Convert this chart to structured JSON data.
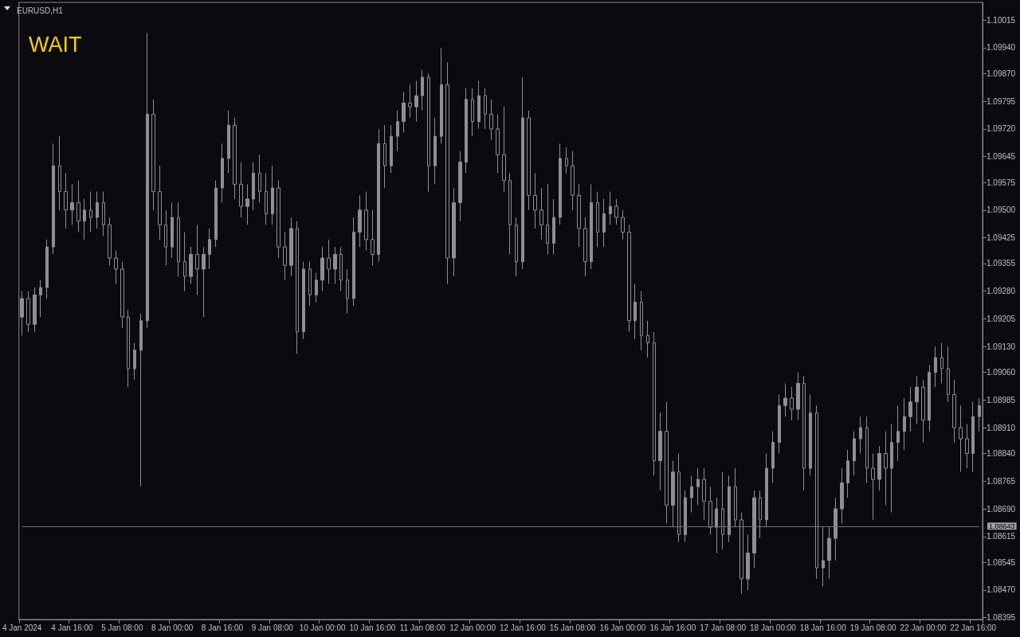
{
  "chart_data": {
    "type": "candlestick",
    "title": "EURUSD,H1",
    "color": "#8e8e96",
    "annotations": [
      "WAIT"
    ],
    "categories": [
      "4 Jan 2024",
      null,
      null,
      null,
      null,
      null,
      null,
      null,
      "4 Jan 16:00",
      null,
      null,
      null,
      null,
      null,
      null,
      null,
      "5 Jan 08:00",
      null,
      null,
      null,
      null,
      null,
      null,
      null,
      "8 Jan 00:00",
      null,
      null,
      null,
      null,
      null,
      null,
      null,
      "8 Jan 16:00",
      null,
      null,
      null,
      null,
      null,
      null,
      null,
      "9 Jan 08:00",
      null,
      null,
      null,
      null,
      null,
      null,
      null,
      "10 Jan 00:00",
      null,
      null,
      null,
      null,
      null,
      null,
      null,
      "10 Jan 16:00",
      null,
      null,
      null,
      null,
      null,
      null,
      null,
      "11 Jan 08:00",
      null,
      null,
      null,
      null,
      null,
      null,
      null,
      "12 Jan 00:00",
      null,
      null,
      null,
      null,
      null,
      null,
      null,
      "12 Jan 16:00",
      null,
      null,
      null,
      null,
      null,
      null,
      null,
      "15 Jan 08:00",
      null,
      null,
      null,
      null,
      null,
      null,
      null,
      "16 Jan 00:00",
      null,
      null,
      null,
      null,
      null,
      null,
      null,
      "16 Jan 16:00",
      null,
      null,
      null,
      null,
      null,
      null,
      null,
      "17 Jan 08:00",
      null,
      null,
      null,
      null,
      null,
      null,
      null,
      "18 Jan 00:00",
      null,
      null,
      null,
      null,
      null,
      null,
      null,
      "18 Jan 16:00",
      null,
      null,
      null,
      null,
      null,
      null,
      null,
      "19 Jan 08:00",
      null,
      null,
      null,
      null,
      null,
      null,
      null,
      "22 Jan 00:00",
      null,
      null,
      null,
      null,
      null,
      null,
      null,
      "22 Jan 16:00",
      null
    ],
    "ohlc": [
      [
        1.0921,
        1.0928,
        1.0916,
        1.0926
      ],
      [
        1.0926,
        1.0928,
        1.0917,
        1.0919
      ],
      [
        1.0919,
        1.0929,
        1.0917,
        1.0927
      ],
      [
        1.0927,
        1.0931,
        1.0921,
        1.0929
      ],
      [
        1.0929,
        1.0942,
        1.0926,
        1.094
      ],
      [
        1.094,
        1.0968,
        1.0938,
        1.0962
      ],
      [
        1.0962,
        1.097,
        1.095,
        1.0955
      ],
      [
        1.0955,
        1.096,
        1.0945,
        1.095
      ],
      [
        1.095,
        1.0957,
        1.0946,
        1.0952
      ],
      [
        1.0952,
        1.0958,
        1.0944,
        1.0947
      ],
      [
        1.0947,
        1.0953,
        1.0942,
        1.095
      ],
      [
        1.095,
        1.0955,
        1.0944,
        1.0948
      ],
      [
        1.0948,
        1.0955,
        1.0945,
        1.0952
      ],
      [
        1.0952,
        1.0955,
        1.0943,
        1.0946
      ],
      [
        1.0946,
        1.0948,
        1.0935,
        1.0937
      ],
      [
        1.0937,
        1.0939,
        1.093,
        1.0934
      ],
      [
        1.0934,
        1.0936,
        1.0918,
        1.0921
      ],
      [
        1.0921,
        1.0923,
        1.0902,
        1.0907
      ],
      [
        1.0907,
        1.0914,
        1.0904,
        1.0912
      ],
      [
        1.0912,
        1.0922,
        1.0875,
        1.092
      ],
      [
        1.092,
        1.0998,
        1.0918,
        1.0976
      ],
      [
        1.0976,
        1.098,
        1.095,
        1.0955
      ],
      [
        1.0955,
        1.0962,
        1.0942,
        1.0946
      ],
      [
        1.0946,
        1.095,
        1.0935,
        1.094
      ],
      [
        1.094,
        1.0952,
        1.0937,
        1.0948
      ],
      [
        1.0948,
        1.0952,
        1.0932,
        1.0936
      ],
      [
        1.0936,
        1.0944,
        1.0928,
        1.0932
      ],
      [
        1.0932,
        1.094,
        1.093,
        1.0938
      ],
      [
        1.0938,
        1.0946,
        1.0927,
        1.0934
      ],
      [
        1.0934,
        1.094,
        1.0921,
        1.0938
      ],
      [
        1.0938,
        1.0945,
        1.0934,
        1.0942
      ],
      [
        1.0942,
        1.0958,
        1.094,
        1.0956
      ],
      [
        1.0956,
        1.0968,
        1.0952,
        1.0964
      ],
      [
        1.0964,
        1.0977,
        1.096,
        1.0973
      ],
      [
        1.0973,
        1.0975,
        1.0953,
        1.0957
      ],
      [
        1.0957,
        1.0963,
        1.0948,
        1.0951
      ],
      [
        1.0951,
        1.0957,
        1.0946,
        1.0953
      ],
      [
        1.0953,
        1.0963,
        1.095,
        1.096
      ],
      [
        1.096,
        1.0965,
        1.0952,
        1.0955
      ],
      [
        1.0955,
        1.096,
        1.0946,
        1.0949
      ],
      [
        1.0949,
        1.0962,
        1.0946,
        1.0956
      ],
      [
        1.0956,
        1.0958,
        1.0937,
        1.094
      ],
      [
        1.094,
        1.0944,
        1.0931,
        1.0935
      ],
      [
        1.0935,
        1.0948,
        1.0932,
        1.0945
      ],
      [
        1.0945,
        1.0947,
        1.0911,
        1.0917
      ],
      [
        1.0917,
        1.0936,
        1.0915,
        1.0934
      ],
      [
        1.0934,
        1.0936,
        1.0924,
        1.0927
      ],
      [
        1.0927,
        1.0933,
        1.0925,
        1.0931
      ],
      [
        1.0931,
        1.094,
        1.0928,
        1.0937
      ],
      [
        1.0937,
        1.0942,
        1.093,
        1.0934
      ],
      [
        1.0934,
        1.094,
        1.093,
        1.0938
      ],
      [
        1.0938,
        1.094,
        1.0928,
        1.0931
      ],
      [
        1.0931,
        1.0934,
        1.0922,
        1.0926
      ],
      [
        1.0926,
        1.0948,
        1.0924,
        1.0944
      ],
      [
        1.0944,
        1.0954,
        1.094,
        1.095
      ],
      [
        1.095,
        1.0955,
        1.0939,
        1.0942
      ],
      [
        1.0942,
        1.095,
        1.0935,
        1.0938
      ],
      [
        1.0938,
        1.0972,
        1.0936,
        1.0968
      ],
      [
        1.0968,
        1.0973,
        1.0956,
        1.0962
      ],
      [
        1.0962,
        1.0973,
        1.096,
        1.097
      ],
      [
        1.097,
        1.0977,
        1.0966,
        1.0974
      ],
      [
        1.0974,
        1.0982,
        1.0971,
        1.0979
      ],
      [
        1.0979,
        1.0984,
        1.0975,
        1.0978
      ],
      [
        1.0978,
        1.0985,
        1.0974,
        1.0981
      ],
      [
        1.0981,
        1.0988,
        1.0977,
        1.0986
      ],
      [
        1.0986,
        1.0987,
        1.0955,
        1.0962
      ],
      [
        1.0962,
        1.0975,
        1.0957,
        1.097
      ],
      [
        1.097,
        1.0994,
        1.0968,
        1.0984
      ],
      [
        1.0984,
        1.099,
        1.093,
        1.0937
      ],
      [
        1.0937,
        1.0956,
        1.0932,
        1.0952
      ],
      [
        1.0952,
        1.0966,
        1.0947,
        1.0963
      ],
      [
        1.0963,
        1.0983,
        1.096,
        1.098
      ],
      [
        1.098,
        1.0983,
        1.097,
        1.0974
      ],
      [
        1.0974,
        1.0985,
        1.0972,
        1.0981
      ],
      [
        1.0981,
        1.0983,
        1.0972,
        1.0976
      ],
      [
        1.0976,
        1.098,
        1.0969,
        1.0972
      ],
      [
        1.0972,
        1.0976,
        1.096,
        1.0965
      ],
      [
        1.0965,
        1.0978,
        1.0955,
        1.0958
      ],
      [
        1.0958,
        1.096,
        1.0938,
        1.0946
      ],
      [
        1.0946,
        1.0948,
        1.0932,
        1.0936
      ],
      [
        1.0936,
        1.0986,
        1.0934,
        1.0975
      ],
      [
        1.0975,
        1.0977,
        1.095,
        1.0954
      ],
      [
        1.0954,
        1.096,
        1.0945,
        1.095
      ],
      [
        1.095,
        1.0956,
        1.0942,
        1.0946
      ],
      [
        1.0946,
        1.0957,
        1.0938,
        1.0941
      ],
      [
        1.0941,
        1.0953,
        1.0938,
        1.0948
      ],
      [
        1.0948,
        1.0968,
        1.0946,
        1.0964
      ],
      [
        1.0964,
        1.0967,
        1.096,
        1.0962
      ],
      [
        1.0962,
        1.0966,
        1.095,
        1.0954
      ],
      [
        1.0954,
        1.0957,
        1.094,
        1.0945
      ],
      [
        1.0945,
        1.0948,
        1.0932,
        1.0936
      ],
      [
        1.0936,
        1.0957,
        1.0934,
        1.0952
      ],
      [
        1.0952,
        1.0955,
        1.094,
        1.0944
      ],
      [
        1.0944,
        1.0953,
        1.094,
        1.0949
      ],
      [
        1.0949,
        1.0955,
        1.0946,
        1.0951
      ],
      [
        1.0951,
        1.0953,
        1.0946,
        1.0948
      ],
      [
        1.0948,
        1.095,
        1.0942,
        1.0944
      ],
      [
        1.0944,
        1.0946,
        1.0917,
        1.092
      ],
      [
        1.092,
        1.093,
        1.0915,
        1.0925
      ],
      [
        1.0925,
        1.0928,
        1.0912,
        1.0916
      ],
      [
        1.0916,
        1.092,
        1.091,
        1.0914
      ],
      [
        1.0914,
        1.0917,
        1.0878,
        1.0882
      ],
      [
        1.0882,
        1.0895,
        1.0874,
        1.089
      ],
      [
        1.089,
        1.0898,
        1.0865,
        1.087
      ],
      [
        1.087,
        1.0882,
        1.0864,
        1.0879
      ],
      [
        1.0879,
        1.0884,
        1.086,
        1.0862
      ],
      [
        1.0862,
        1.0874,
        1.086,
        1.0872
      ],
      [
        1.0872,
        1.0878,
        1.0868,
        1.0875
      ],
      [
        1.0875,
        1.088,
        1.087,
        1.0877
      ],
      [
        1.0877,
        1.088,
        1.0866,
        1.0871
      ],
      [
        1.0871,
        1.0875,
        1.0862,
        1.0864
      ],
      [
        1.0864,
        1.0872,
        1.0857,
        1.0869
      ],
      [
        1.0869,
        1.0879,
        1.0858,
        1.0862
      ],
      [
        1.0862,
        1.0878,
        1.086,
        1.0875
      ],
      [
        1.0875,
        1.088,
        1.0864,
        1.0866
      ],
      [
        1.0866,
        1.0868,
        1.0846,
        1.085
      ],
      [
        1.085,
        1.0862,
        1.0847,
        1.0857
      ],
      [
        1.0857,
        1.0874,
        1.0853,
        1.0872
      ],
      [
        1.0872,
        1.0874,
        1.0861,
        1.0866
      ],
      [
        1.0866,
        1.0884,
        1.0864,
        1.088
      ],
      [
        1.088,
        1.089,
        1.0876,
        1.0887
      ],
      [
        1.0887,
        1.09,
        1.0884,
        1.0897
      ],
      [
        1.0897,
        1.0903,
        1.0894,
        1.0899
      ],
      [
        1.0899,
        1.0902,
        1.0893,
        1.0896
      ],
      [
        1.0896,
        1.0906,
        1.0893,
        1.0903
      ],
      [
        1.0903,
        1.0905,
        1.0874,
        1.088
      ],
      [
        1.088,
        1.09,
        1.0878,
        1.0895
      ],
      [
        1.0895,
        1.0897,
        1.085,
        1.0853
      ],
      [
        1.0853,
        1.0864,
        1.0848,
        1.0855
      ],
      [
        1.0855,
        1.0864,
        1.085,
        1.0861
      ],
      [
        1.0861,
        1.0872,
        1.0855,
        1.0869
      ],
      [
        1.0869,
        1.088,
        1.0865,
        1.0876
      ],
      [
        1.0876,
        1.0885,
        1.0872,
        1.0882
      ],
      [
        1.0882,
        1.089,
        1.0878,
        1.0888
      ],
      [
        1.0888,
        1.0894,
        1.0884,
        1.0891
      ],
      [
        1.0891,
        1.0894,
        1.0876,
        1.088
      ],
      [
        1.088,
        1.0884,
        1.0866,
        1.0877
      ],
      [
        1.0877,
        1.0886,
        1.0874,
        1.0884
      ],
      [
        1.0884,
        1.089,
        1.087,
        1.088
      ],
      [
        1.088,
        1.0892,
        1.0868,
        1.0887
      ],
      [
        1.0887,
        1.0897,
        1.0882,
        1.089
      ],
      [
        1.089,
        1.0899,
        1.0885,
        1.0894
      ],
      [
        1.0894,
        1.0902,
        1.089,
        1.0898
      ],
      [
        1.0898,
        1.0905,
        1.0892,
        1.0902
      ],
      [
        1.0902,
        1.0904,
        1.0887,
        1.0893
      ],
      [
        1.0893,
        1.0908,
        1.089,
        1.0906
      ],
      [
        1.0906,
        1.0913,
        1.0902,
        1.091
      ],
      [
        1.091,
        1.0914,
        1.0903,
        1.0907
      ],
      [
        1.0907,
        1.0913,
        1.0898,
        1.09
      ],
      [
        1.09,
        1.0904,
        1.0887,
        1.0891
      ],
      [
        1.0891,
        1.0897,
        1.0879,
        1.0888
      ],
      [
        1.0888,
        1.0892,
        1.088,
        1.0884
      ],
      [
        1.0884,
        1.0898,
        1.0879,
        1.0894
      ],
      [
        1.0894,
        1.0899,
        1.089,
        1.0897
      ]
    ],
    "ylim": [
      1.0839,
      1.10063
    ],
    "yticks": [
      {
        "value": 1.10015,
        "label": "1.10015"
      },
      {
        "value": 1.0994,
        "label": "1.09940"
      },
      {
        "value": 1.0987,
        "label": "1.09870"
      },
      {
        "value": 1.09795,
        "label": "1.09795"
      },
      {
        "value": 1.0972,
        "label": "1.09720"
      },
      {
        "value": 1.09645,
        "label": "1.09645"
      },
      {
        "value": 1.09575,
        "label": "1.09575"
      },
      {
        "value": 1.095,
        "label": "1.09500"
      },
      {
        "value": 1.09425,
        "label": "1.09425"
      },
      {
        "value": 1.09355,
        "label": "1.09355"
      },
      {
        "value": 1.0928,
        "label": "1.09280"
      },
      {
        "value": 1.09205,
        "label": "1.09205"
      },
      {
        "value": 1.0913,
        "label": "1.09130"
      },
      {
        "value": 1.0906,
        "label": "1.09060"
      },
      {
        "value": 1.08985,
        "label": "1.08985"
      },
      {
        "value": 1.0891,
        "label": "1.08910"
      },
      {
        "value": 1.0884,
        "label": "1.08840"
      },
      {
        "value": 1.08765,
        "label": "1.08765"
      },
      {
        "value": 1.0869,
        "label": "1.08690"
      },
      {
        "value": 1.08615,
        "label": "1.08615"
      },
      {
        "value": 1.08545,
        "label": "1.08545"
      },
      {
        "value": 1.0847,
        "label": "1.08470"
      },
      {
        "value": 1.08395,
        "label": "1.08395"
      }
    ],
    "ref_lines": [
      {
        "axis": "y",
        "value": 1.08643,
        "label": "1.08643",
        "color": "#707070"
      }
    ]
  }
}
